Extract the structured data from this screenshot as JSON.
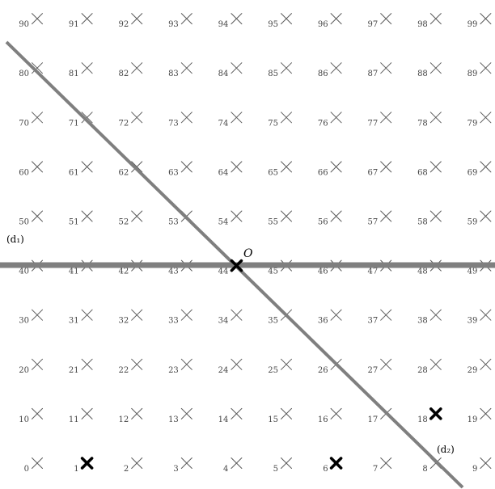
{
  "grid": {
    "rows": 10,
    "cols": 10,
    "labels": [
      [
        "0",
        "1",
        "2",
        "3",
        "4",
        "5",
        "6",
        "7",
        "8",
        "9"
      ],
      [
        "10",
        "11",
        "12",
        "13",
        "14",
        "15",
        "16",
        "17",
        "18",
        "19"
      ],
      [
        "20",
        "21",
        "22",
        "23",
        "24",
        "25",
        "26",
        "27",
        "28",
        "29"
      ],
      [
        "30",
        "31",
        "32",
        "33",
        "34",
        "35",
        "36",
        "37",
        "38",
        "39"
      ],
      [
        "40",
        "41",
        "42",
        "43",
        "44",
        "45",
        "46",
        "47",
        "48",
        "49"
      ],
      [
        "50",
        "51",
        "52",
        "53",
        "54",
        "55",
        "56",
        "57",
        "58",
        "59"
      ],
      [
        "60",
        "61",
        "62",
        "63",
        "64",
        "65",
        "66",
        "67",
        "68",
        "69"
      ],
      [
        "70",
        "71",
        "72",
        "73",
        "74",
        "75",
        "76",
        "77",
        "78",
        "79"
      ],
      [
        "80",
        "81",
        "82",
        "83",
        "84",
        "85",
        "86",
        "87",
        "88",
        "89"
      ],
      [
        "90",
        "91",
        "92",
        "93",
        "94",
        "95",
        "96",
        "97",
        "98",
        "99"
      ]
    ],
    "highlighted": [
      "1",
      "6",
      "18"
    ],
    "origin_point": "44"
  },
  "annotations": {
    "origin": "O",
    "line_d1": "(d₁)",
    "line_d2": "(d₂)"
  },
  "colors": {
    "line": "#7f7f7f",
    "cross": "#5a5a5a",
    "highlight": "#000000",
    "label": "#444444",
    "background": "#ffffff"
  }
}
